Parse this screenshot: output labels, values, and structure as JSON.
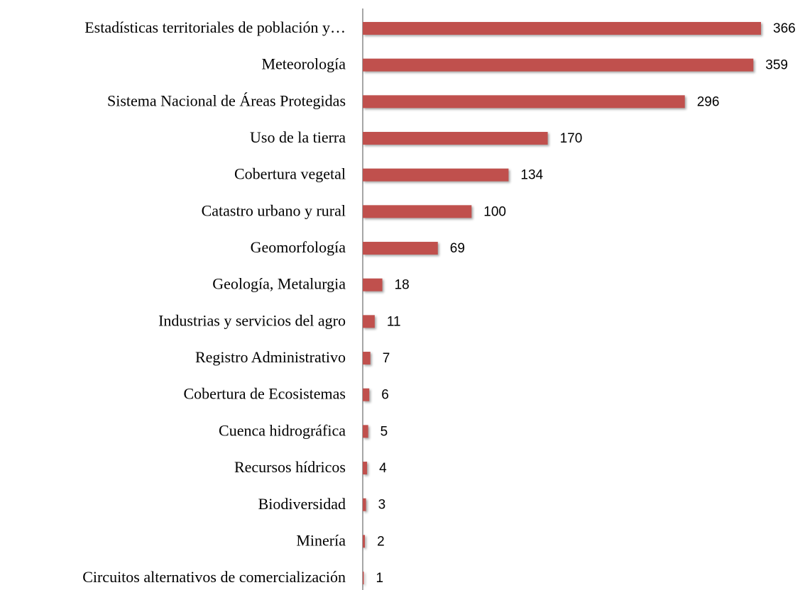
{
  "chart_data": {
    "type": "bar",
    "orientation": "horizontal",
    "color": "#c0504d",
    "categories": [
      "Estadísticas territoriales de población y…",
      "Meteorología",
      "Sistema Nacional de Áreas Protegidas",
      "Uso de la tierra",
      "Cobertura vegetal",
      "Catastro urbano y rural",
      "Geomorfología",
      "Geología, Metalurgia",
      "Industrias y servicios del agro",
      "Registro Administrativo",
      "Cobertura de Ecosistemas",
      "Cuenca hidrográfica",
      "Recursos hídricos",
      "Biodiversidad",
      "Minería",
      "Circuitos alternativos de comercialización"
    ],
    "values": [
      366,
      359,
      296,
      170,
      134,
      100,
      69,
      18,
      11,
      7,
      6,
      5,
      4,
      3,
      2,
      1
    ]
  }
}
